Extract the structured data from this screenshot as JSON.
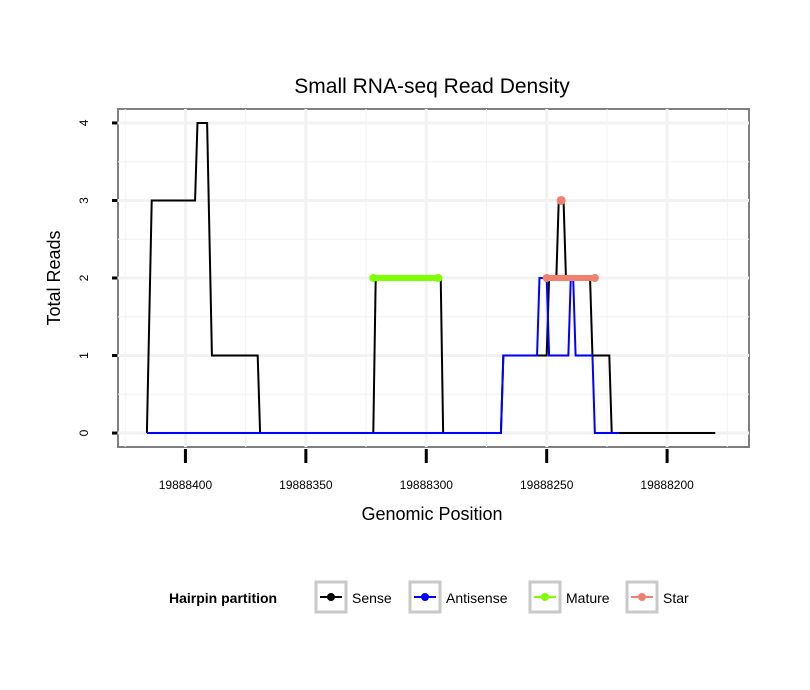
{
  "chart_data": {
    "type": "line",
    "title": "Small RNA-seq Read Density",
    "xlabel": "Genomic Position",
    "ylabel": "Total Reads",
    "x_reversed": true,
    "xlim": [
      19888166,
      19888428
    ],
    "ylim": [
      -0.18,
      4.18
    ],
    "x_ticks": [
      19888400,
      19888350,
      19888300,
      19888250,
      19888200
    ],
    "x_tick_labels": [
      "19888400",
      "19888350",
      "19888300",
      "19888250",
      "19888200"
    ],
    "y_ticks": [
      0,
      1,
      2,
      3,
      4
    ],
    "y_tick_labels": [
      "0",
      "1",
      "2",
      "3",
      "4"
    ],
    "grid": true,
    "legend": {
      "title": "Hairpin partition",
      "position": "bottom",
      "entries": [
        {
          "name": "Sense",
          "color": "#000000"
        },
        {
          "name": "Antisense",
          "color": "#0000ff"
        },
        {
          "name": "Mature",
          "color": "#7fff00"
        },
        {
          "name": "Star",
          "color": "#f08070"
        }
      ]
    },
    "series": [
      {
        "name": "Sense",
        "color": "#000000",
        "style": "line",
        "points": [
          [
            19888416,
            0
          ],
          [
            19888414,
            3
          ],
          [
            19888396,
            3
          ],
          [
            19888395,
            4
          ],
          [
            19888391,
            4
          ],
          [
            19888389,
            1
          ],
          [
            19888370,
            1
          ],
          [
            19888369,
            0
          ],
          [
            19888322,
            0
          ],
          [
            19888321,
            2
          ],
          [
            19888294,
            2
          ],
          [
            19888293,
            0
          ],
          [
            19888269,
            0
          ],
          [
            19888268,
            1
          ],
          [
            19888250,
            1
          ],
          [
            19888249,
            2
          ],
          [
            19888246,
            2
          ],
          [
            19888245,
            3
          ],
          [
            19888243,
            3
          ],
          [
            19888242,
            2
          ],
          [
            19888232,
            2
          ],
          [
            19888231,
            1
          ],
          [
            19888224,
            1
          ],
          [
            19888223,
            0
          ],
          [
            19888180,
            0
          ]
        ]
      },
      {
        "name": "Antisense",
        "color": "#0000ff",
        "style": "line",
        "points": [
          [
            19888416,
            0
          ],
          [
            19888269,
            0
          ],
          [
            19888268,
            1
          ],
          [
            19888254,
            1
          ],
          [
            19888253,
            2
          ],
          [
            19888250,
            2
          ],
          [
            19888249,
            1
          ],
          [
            19888241,
            1
          ],
          [
            19888240,
            2
          ],
          [
            19888239,
            2
          ],
          [
            19888238,
            1
          ],
          [
            19888231,
            1
          ],
          [
            19888230,
            0
          ],
          [
            19888220,
            0
          ]
        ]
      },
      {
        "name": "Mature",
        "color": "#7fff00",
        "style": "segment",
        "points": [
          [
            19888322,
            2
          ],
          [
            19888295,
            2
          ]
        ]
      },
      {
        "name": "Star",
        "color": "#f08070",
        "style": "segment",
        "points": [
          [
            19888250,
            2
          ],
          [
            19888230,
            2
          ]
        ],
        "peak": [
          19888244,
          3
        ]
      }
    ]
  }
}
